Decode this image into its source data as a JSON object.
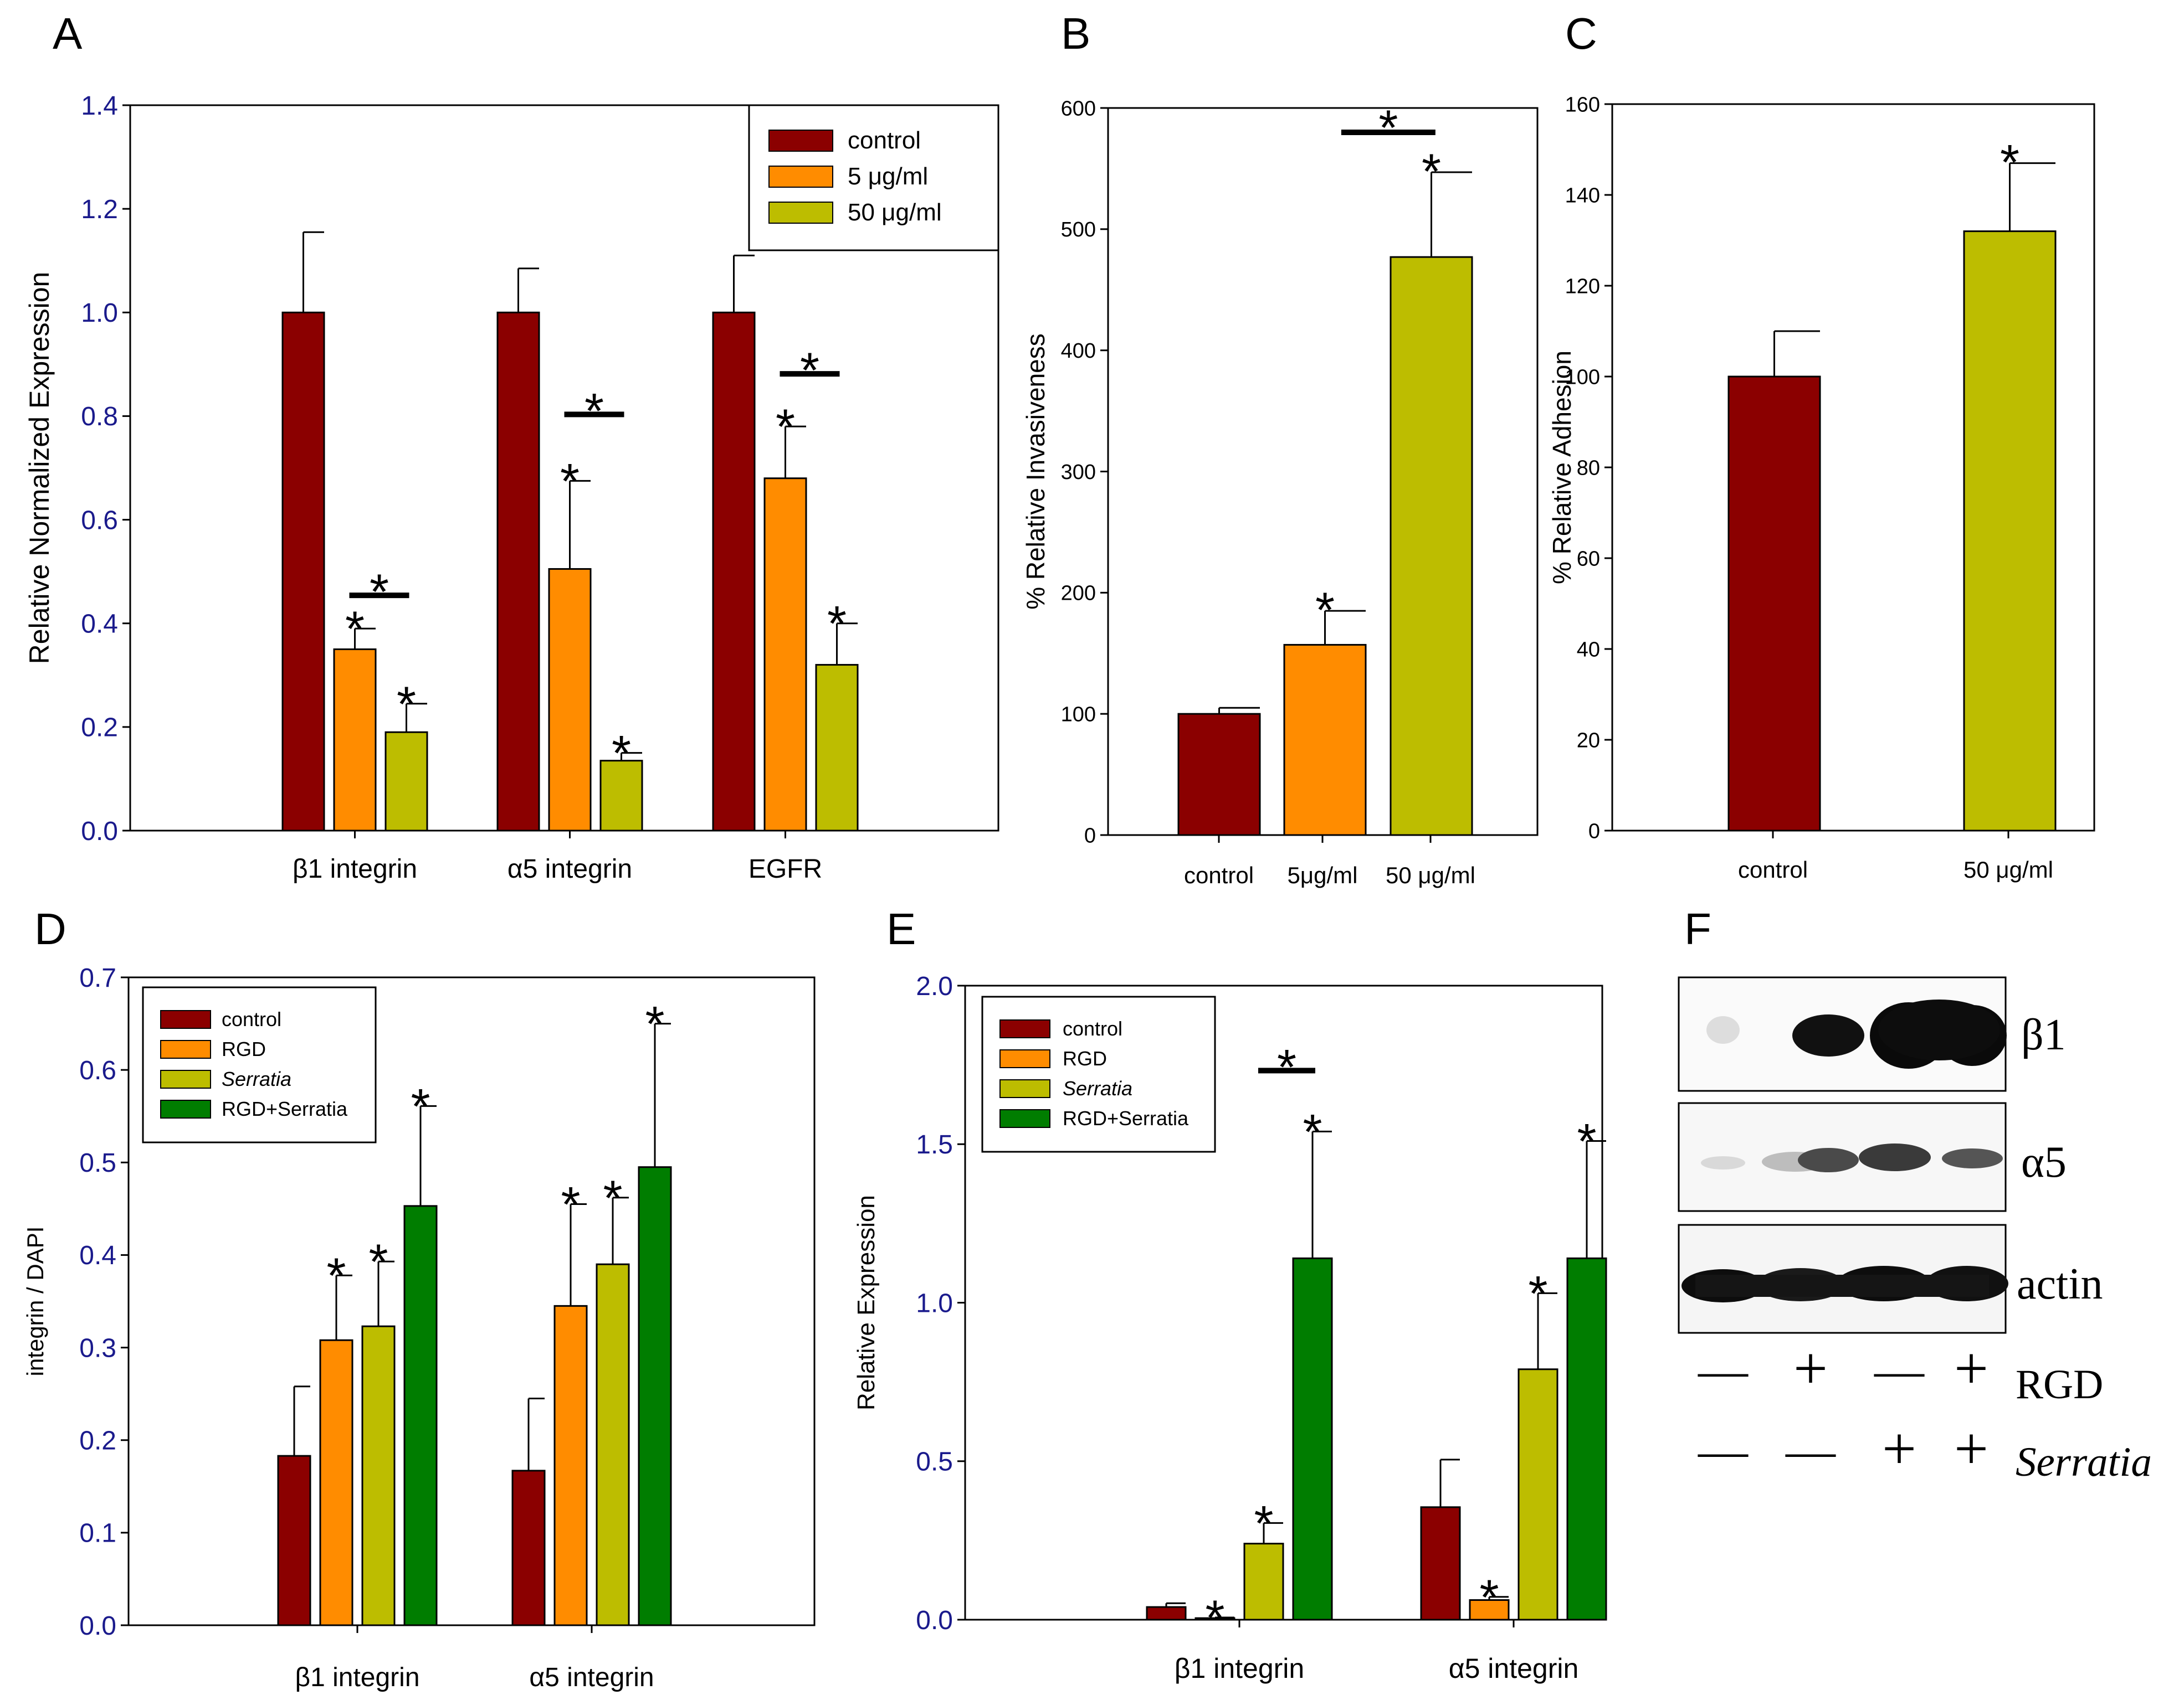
{
  "colors": {
    "control": "#8b0000",
    "rgd": "#ff8c00",
    "serratia": "#bdbd00",
    "rgd_serratia": "#007d00",
    "axis_text": "#1a1a8c",
    "ink": "#000000"
  },
  "chart_data": [
    {
      "id": "A",
      "panel_label": "A",
      "type": "bar",
      "ylabel": "Relative Normalized Expression",
      "ylim": [
        0,
        1.4
      ],
      "yticks": [
        "0.0",
        "0.2",
        "0.4",
        "0.6",
        "0.8",
        "1.0",
        "1.2",
        "1.4"
      ],
      "categories": [
        "β1 integrin",
        "α5 integrin",
        "EGFR"
      ],
      "series": [
        {
          "name": "control",
          "values": [
            1.0,
            1.0,
            1.0
          ],
          "errors": [
            0.155,
            0.085,
            0.11
          ]
        },
        {
          "name": "5 μg/ml",
          "values": [
            0.35,
            0.505,
            0.68
          ],
          "errors": [
            0.04,
            0.17,
            0.1
          ]
        },
        {
          "name": "50 μg/ml",
          "values": [
            0.19,
            0.135,
            0.32
          ],
          "errors": [
            0.055,
            0.015,
            0.08
          ]
        }
      ],
      "annotations": [
        "*",
        "*",
        "*",
        "*",
        "*",
        "*",
        "*",
        "*",
        "*"
      ],
      "legend": "top-right"
    },
    {
      "id": "B",
      "panel_label": "B",
      "type": "bar",
      "ylabel": "% Relative Invasiveness",
      "ylim": [
        0,
        600
      ],
      "yticks": [
        "0",
        "100",
        "200",
        "300",
        "400",
        "500",
        "600"
      ],
      "categories": [
        "control",
        "5μg/ml",
        "50 μg/ml"
      ],
      "values": [
        100,
        157,
        477
      ],
      "errors": [
        5,
        28,
        70
      ],
      "annotations": [
        "*",
        "*",
        "*"
      ]
    },
    {
      "id": "C",
      "panel_label": "C",
      "type": "bar",
      "ylabel": "% Relative Adhesion",
      "ylim": [
        0,
        160
      ],
      "yticks": [
        "0",
        "20",
        "40",
        "60",
        "80",
        "100",
        "120",
        "140",
        "160"
      ],
      "categories": [
        "control",
        "50 μg/ml"
      ],
      "values": [
        100,
        132
      ],
      "errors": [
        10,
        15
      ],
      "annotations": [
        "*"
      ]
    },
    {
      "id": "D",
      "panel_label": "D",
      "type": "bar",
      "ylabel": "integrin / DAPI",
      "ylim": [
        0,
        0.7
      ],
      "yticks": [
        "0.0",
        "0.1",
        "0.2",
        "0.3",
        "0.4",
        "0.5",
        "0.6",
        "0.7"
      ],
      "categories": [
        "β1 integrin",
        "α5 integrin"
      ],
      "series": [
        {
          "name": "control",
          "values": [
            0.183,
            0.167
          ],
          "errors": [
            0.075,
            0.078
          ]
        },
        {
          "name": "RGD",
          "values": [
            0.308,
            0.345
          ],
          "errors": [
            0.07,
            0.11
          ]
        },
        {
          "name": "Serratia",
          "values": [
            0.323,
            0.39
          ],
          "errors": [
            0.07,
            0.072
          ]
        },
        {
          "name": "RGD+Serratia",
          "values": [
            0.453,
            0.495
          ],
          "errors": [
            0.108,
            0.155
          ]
        }
      ],
      "annotations": [
        "*",
        "*",
        "*",
        "*",
        "*",
        "*"
      ],
      "legend": "top-left"
    },
    {
      "id": "E",
      "panel_label": "E",
      "type": "bar",
      "ylabel": "Relative Expression",
      "ylim": [
        0,
        2.0
      ],
      "yticks": [
        "0.0",
        "0.5",
        "1.0",
        "1.5",
        "2.0"
      ],
      "categories": [
        "β1 integrin",
        "α5 integrin"
      ],
      "series": [
        {
          "name": "control",
          "values": [
            0.04,
            0.355
          ],
          "errors": [
            0.012,
            0.15
          ]
        },
        {
          "name": "RGD",
          "values": [
            0.005,
            0.062
          ],
          "errors": [
            0.002,
            0.01
          ]
        },
        {
          "name": "Serratia",
          "values": [
            0.24,
            0.79
          ],
          "errors": [
            0.065,
            0.24
          ]
        },
        {
          "name": "RGD+Serratia",
          "values": [
            1.14,
            1.14
          ],
          "errors": [
            0.4,
            0.37
          ]
        }
      ],
      "annotations": [
        "*",
        "*",
        "*",
        "*",
        "*",
        "*",
        "*"
      ],
      "legend": "top-left"
    }
  ],
  "legends": {
    "a": {
      "entries": [
        "control",
        "5 μg/ml",
        "50 μg/ml"
      ]
    },
    "d": {
      "entries": [
        "control",
        "RGD",
        "Serratia",
        "RGD+Serratia"
      ]
    },
    "e": {
      "entries": [
        "control",
        "RGD",
        "Serratia",
        "RGD+Serratia"
      ]
    }
  },
  "panel_f": {
    "panel_label": "F",
    "blot_labels": [
      "β1",
      "α5",
      "actin"
    ],
    "row_labels": [
      "RGD",
      "Serratia"
    ],
    "rgd_signs": [
      "—",
      "+",
      "—",
      "+"
    ],
    "serratia_signs": [
      "—",
      "—",
      "+",
      "+"
    ]
  }
}
